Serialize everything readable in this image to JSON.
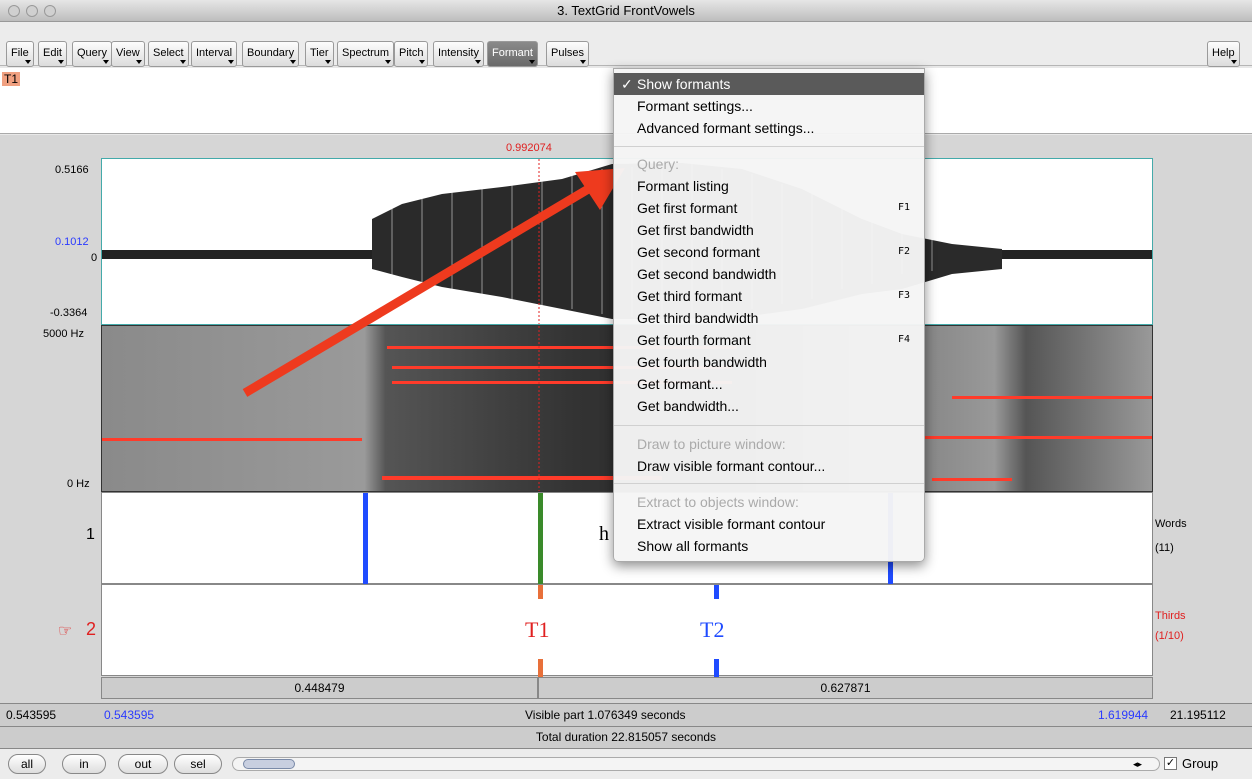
{
  "window": {
    "title": "3. TextGrid FrontVowels"
  },
  "menu": {
    "items": [
      "File",
      "Edit",
      "Query",
      "View",
      "Select",
      "Interval",
      "Boundary",
      "Tier",
      "Spectrum",
      "Pitch",
      "Intensity",
      "Formant",
      "Pulses"
    ],
    "help": "Help"
  },
  "text_area": {
    "tag": "T1"
  },
  "cursor": {
    "time": "0.992074"
  },
  "wave": {
    "max": "0.5166",
    "blue": "0.1012",
    "zero": "0",
    "min": "-0.3364"
  },
  "spectrogram": {
    "top": "5000 Hz",
    "bottom": "0 Hz"
  },
  "tiers": {
    "t1": {
      "num": "1",
      "text": "h",
      "name": "Words",
      "count": "(11)"
    },
    "t2": {
      "num": "2",
      "marker1": "T1",
      "marker2": "T2",
      "name": "Thirds",
      "count": "(1/10)",
      "pointer": "☞"
    }
  },
  "durations": {
    "left": "0.448479",
    "right": "0.627871"
  },
  "status": {
    "left_outer": "0.543595",
    "left_inner": "0.543595",
    "visible": "Visible part 1.076349 seconds",
    "right_inner": "1.619944",
    "right_outer": "21.195112",
    "total": "Total duration 22.815057 seconds"
  },
  "buttons": {
    "all": "all",
    "in": "in",
    "out": "out",
    "sel": "sel",
    "group": "Group"
  },
  "formant_menu": [
    {
      "label": "Show formants",
      "checked": true,
      "selected": true
    },
    {
      "label": "Formant settings..."
    },
    {
      "label": "Advanced formant settings..."
    },
    {
      "label": "Query:",
      "disabled": true
    },
    {
      "label": "Formant listing"
    },
    {
      "label": "Get first formant",
      "shortcut": "F1"
    },
    {
      "label": "Get first bandwidth"
    },
    {
      "label": "Get second formant",
      "shortcut": "F2"
    },
    {
      "label": "Get second bandwidth"
    },
    {
      "label": "Get third formant",
      "shortcut": "F3"
    },
    {
      "label": "Get third bandwidth"
    },
    {
      "label": "Get fourth formant",
      "shortcut": "F4"
    },
    {
      "label": "Get fourth bandwidth"
    },
    {
      "label": "Get formant..."
    },
    {
      "label": "Get bandwidth..."
    },
    {
      "label": "Draw to picture window:",
      "disabled": true
    },
    {
      "label": "Draw visible formant contour..."
    },
    {
      "label": "Extract to objects window:",
      "disabled": true
    },
    {
      "label": "Extract visible formant contour"
    },
    {
      "label": "Show all formants"
    }
  ]
}
